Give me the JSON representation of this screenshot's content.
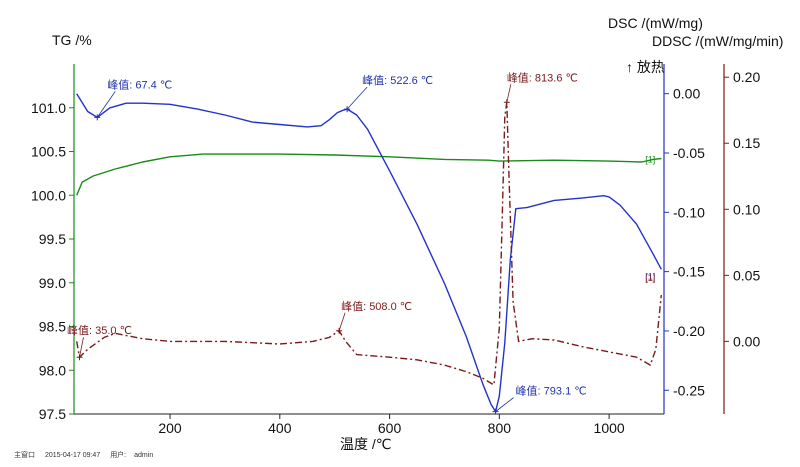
{
  "chart_data": {
    "type": "line",
    "title_left": "TG /%",
    "title_right_dsc": "DSC /(mW/mg)",
    "title_right_ddsc": "DDSC /(mW/mg/min)",
    "exo_label": "↑ 放热",
    "xlabel": "温度 /℃",
    "xlim": [
      25,
      1100
    ],
    "x_ticks": [
      "200",
      "400",
      "600",
      "800",
      "1000"
    ],
    "tg_axis": {
      "ylim": [
        97.5,
        101.5
      ],
      "ticks": [
        "97.5",
        "98.0",
        "98.5",
        "99.0",
        "99.5",
        "100.0",
        "100.5",
        "101.0"
      ],
      "color": "#1b8a1b"
    },
    "dsc_axis": {
      "ylim": [
        -0.27,
        0.025
      ],
      "ticks": [
        "-0.25",
        "-0.20",
        "-0.15",
        "-0.10",
        "-0.05",
        "0.00"
      ],
      "color": "#2233cc"
    },
    "ddsc_axis": {
      "ylim": [
        -0.055,
        0.21
      ],
      "ticks": [
        "0.00",
        "0.05",
        "0.10",
        "0.15",
        "0.20"
      ],
      "color": "#7a1a1a"
    },
    "series": [
      {
        "axis": "tg",
        "color": "#1b8a1b",
        "x": [
          30,
          40,
          60,
          100,
          150,
          200,
          260,
          300,
          400,
          500,
          600,
          700,
          780,
          800,
          900,
          1000,
          1060,
          1080,
          1095
        ],
        "y": [
          100.0,
          100.15,
          100.22,
          100.3,
          100.38,
          100.44,
          100.47,
          100.47,
          100.47,
          100.46,
          100.44,
          100.41,
          100.4,
          100.39,
          100.4,
          100.39,
          100.38,
          100.41,
          100.42
        ]
      },
      {
        "axis": "dsc",
        "color": "#2233cc",
        "x": [
          30,
          50,
          67.4,
          90,
          120,
          150,
          200,
          250,
          300,
          350,
          400,
          450,
          475,
          490,
          505,
          515,
          522.6,
          540,
          560,
          600,
          650,
          700,
          740,
          770,
          785,
          793.1,
          800,
          810,
          820,
          830,
          850,
          900,
          950,
          990,
          1000,
          1020,
          1050,
          1080,
          1095
        ],
        "y": [
          0.0,
          -0.015,
          -0.02,
          -0.012,
          -0.008,
          -0.008,
          -0.009,
          -0.013,
          -0.018,
          -0.024,
          -0.026,
          -0.028,
          -0.027,
          -0.022,
          -0.016,
          -0.014,
          -0.013,
          -0.018,
          -0.03,
          -0.065,
          -0.11,
          -0.16,
          -0.205,
          -0.245,
          -0.262,
          -0.268,
          -0.255,
          -0.21,
          -0.14,
          -0.097,
          -0.096,
          -0.09,
          -0.088,
          -0.086,
          -0.087,
          -0.094,
          -0.11,
          -0.135,
          -0.148
        ]
      },
      {
        "axis": "ddsc",
        "color": "#7a1a1a",
        "dash": "7 3 2 3",
        "x": [
          30,
          35,
          50,
          80,
          100,
          150,
          200,
          300,
          400,
          460,
          490,
          508,
          520,
          540,
          600,
          650,
          700,
          740,
          770,
          790,
          800,
          805,
          810,
          813.6,
          818,
          825,
          835,
          860,
          900,
          950,
          1000,
          1050,
          1075,
          1085,
          1095
        ],
        "y": [
          0.0,
          -0.012,
          -0.006,
          0.003,
          0.006,
          0.002,
          0.0,
          0.0,
          -0.002,
          0.0,
          0.003,
          0.008,
          0.0,
          -0.01,
          -0.012,
          -0.014,
          -0.018,
          -0.023,
          -0.028,
          -0.033,
          0.01,
          0.09,
          0.17,
          0.181,
          0.12,
          0.03,
          0.0,
          0.002,
          0.001,
          -0.004,
          -0.008,
          -0.012,
          -0.018,
          -0.006,
          0.035
        ]
      }
    ],
    "annotations": [
      {
        "axis": "dsc",
        "x": 67.4,
        "y": -0.02,
        "label": "峰值: 67.4 ℃",
        "color": "blue"
      },
      {
        "axis": "dsc",
        "x": 522.6,
        "y": -0.013,
        "label": "峰值: 522.6 ℃",
        "color": "blue"
      },
      {
        "axis": "dsc",
        "x": 793.1,
        "y": -0.268,
        "label": "峰值: 793.1 ℃",
        "color": "blue"
      },
      {
        "axis": "ddsc",
        "x": 813.6,
        "y": 0.181,
        "label": "峰值: 813.6 ℃",
        "color": "red"
      },
      {
        "axis": "ddsc",
        "x": 35.0,
        "y": -0.012,
        "label": "峰值: 35.0 ℃",
        "color": "red"
      },
      {
        "axis": "ddsc",
        "x": 508.0,
        "y": 0.008,
        "label": "峰值: 508.0 ℃",
        "color": "red"
      }
    ],
    "curve_tags": [
      {
        "label": "[1]",
        "series": 0
      },
      {
        "label": "[1]",
        "series": 1
      },
      {
        "label": "[1]",
        "series": 2
      }
    ],
    "grid": false
  },
  "footer": {
    "window": "主窗口",
    "timestamp": "2015-04-17 09:47",
    "user_label": "用户:",
    "user": "admin"
  }
}
